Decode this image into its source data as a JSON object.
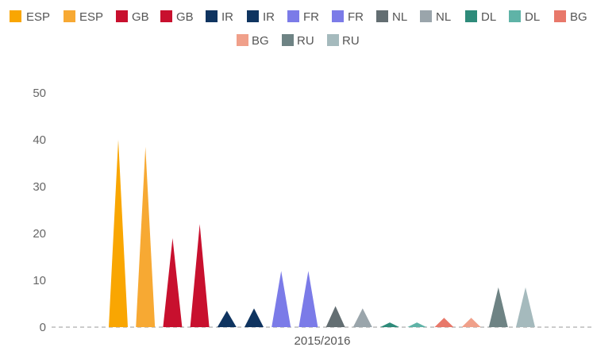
{
  "chart_data": {
    "type": "bar",
    "bar_shape": "triangle",
    "categories": [
      "2015/2016"
    ],
    "ylim": [
      0,
      50
    ],
    "yticks": [
      0,
      10,
      20,
      30,
      40,
      50
    ],
    "grid": false,
    "legend_position": "top",
    "series": [
      {
        "name": "ESP",
        "color": "#f9a602",
        "values": [
          40
        ]
      },
      {
        "name": "ESP",
        "color": "#f7a933",
        "values": [
          38.5
        ]
      },
      {
        "name": "GB",
        "color": "#c8102e",
        "values": [
          19
        ]
      },
      {
        "name": "GB",
        "color": "#c8102e",
        "values": [
          22
        ]
      },
      {
        "name": "IR",
        "color": "#0f3460",
        "values": [
          3.5
        ]
      },
      {
        "name": "IR",
        "color": "#0f3460",
        "values": [
          4
        ]
      },
      {
        "name": "FR",
        "color": "#7b7be8",
        "values": [
          12
        ]
      },
      {
        "name": "FR",
        "color": "#7b7be8",
        "values": [
          12
        ]
      },
      {
        "name": "NL",
        "color": "#636e72",
        "values": [
          4.5
        ]
      },
      {
        "name": "NL",
        "color": "#9aa5ab",
        "values": [
          4
        ]
      },
      {
        "name": "DL",
        "color": "#2e8b7a",
        "values": [
          1
        ]
      },
      {
        "name": "DL",
        "color": "#5fb3a7",
        "values": [
          1
        ]
      },
      {
        "name": "BG",
        "color": "#e8786a",
        "values": [
          2
        ]
      },
      {
        "name": "BG",
        "color": "#f0a08a",
        "values": [
          2
        ]
      },
      {
        "name": "RU",
        "color": "#6e8384",
        "values": [
          8.5
        ]
      },
      {
        "name": "RU",
        "color": "#a5babd",
        "values": [
          8.5
        ]
      }
    ]
  }
}
